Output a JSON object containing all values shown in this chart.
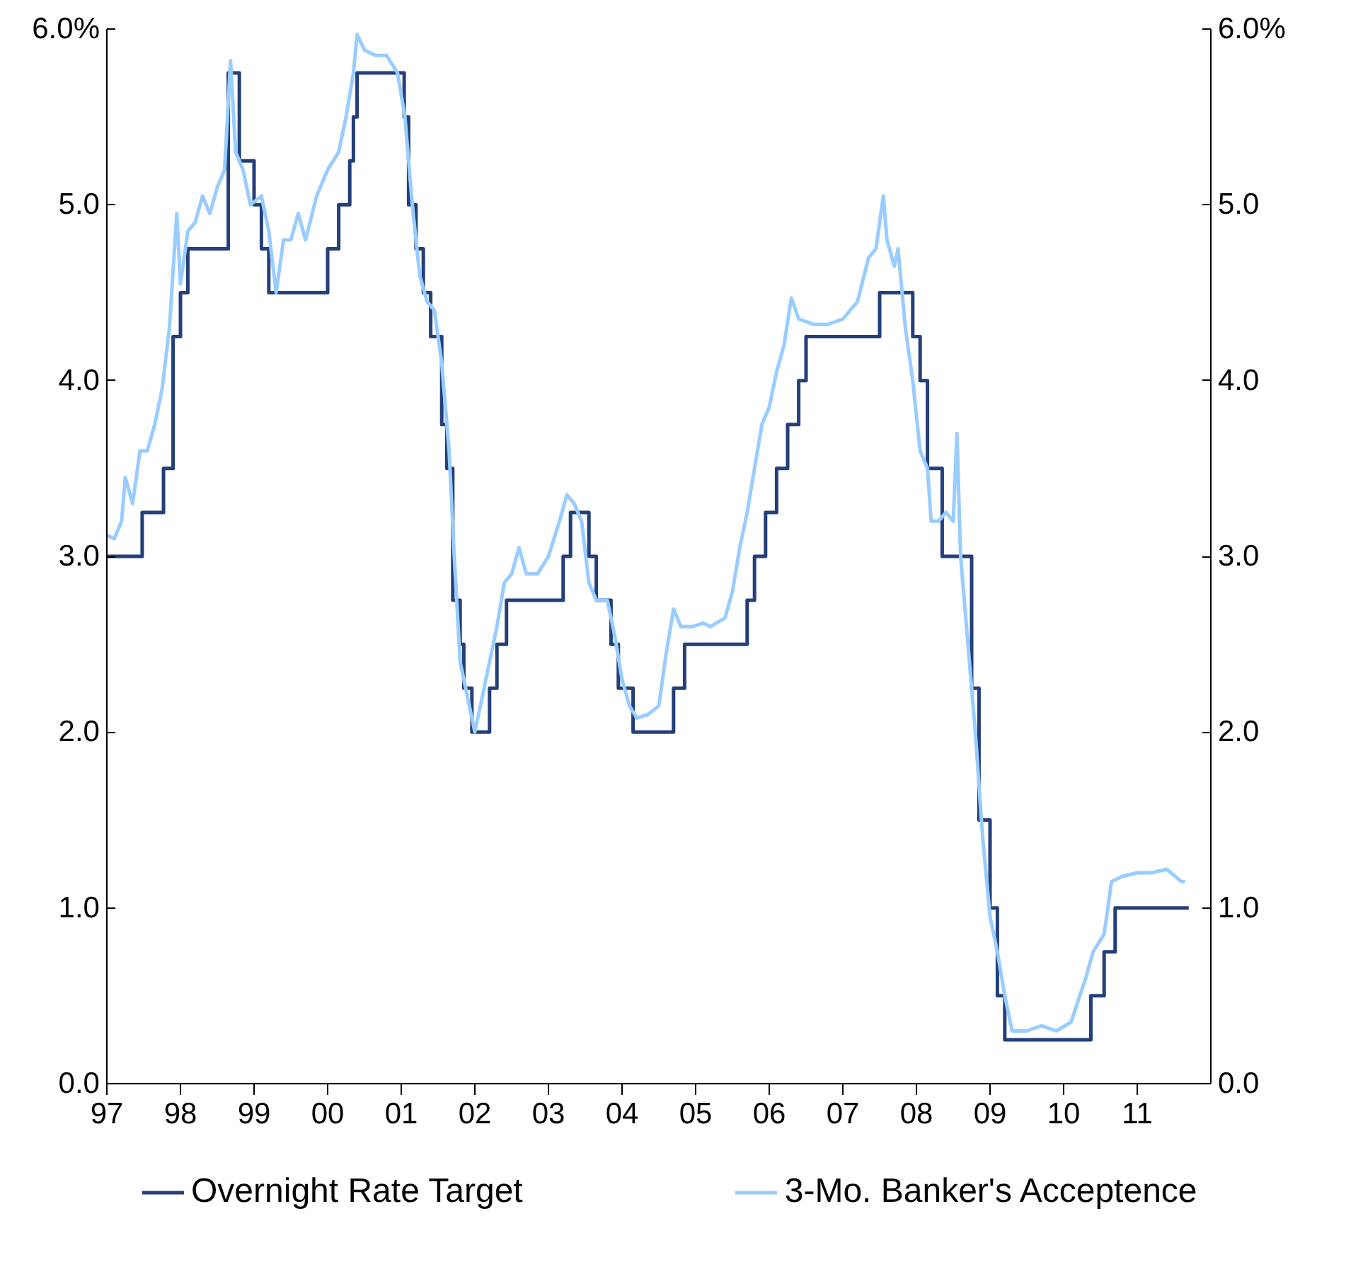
{
  "chart_data": {
    "type": "line",
    "xlim": [
      1997,
      2012
    ],
    "xticks": [
      {
        "value": 1997,
        "label": "97"
      },
      {
        "value": 1998,
        "label": "98"
      },
      {
        "value": 1999,
        "label": "99"
      },
      {
        "value": 2000,
        "label": "00"
      },
      {
        "value": 2001,
        "label": "01"
      },
      {
        "value": 2002,
        "label": "02"
      },
      {
        "value": 2003,
        "label": "03"
      },
      {
        "value": 2004,
        "label": "04"
      },
      {
        "value": 2005,
        "label": "05"
      },
      {
        "value": 2006,
        "label": "06"
      },
      {
        "value": 2007,
        "label": "07"
      },
      {
        "value": 2008,
        "label": "08"
      },
      {
        "value": 2009,
        "label": "09"
      },
      {
        "value": 2010,
        "label": "10"
      },
      {
        "value": 2011,
        "label": "11"
      }
    ],
    "ylim": [
      0,
      6
    ],
    "yticks": [
      {
        "value": 0,
        "label": "0.0"
      },
      {
        "value": 1,
        "label": "1.0"
      },
      {
        "value": 2,
        "label": "2.0"
      },
      {
        "value": 3,
        "label": "3.0"
      },
      {
        "value": 4,
        "label": "4.0"
      },
      {
        "value": 5,
        "label": "5.0"
      },
      {
        "value": 6,
        "label": "6.0%"
      }
    ],
    "y2lim": [
      0,
      6
    ],
    "y2ticks": [
      {
        "value": 0,
        "label": "0.0"
      },
      {
        "value": 1,
        "label": "1.0"
      },
      {
        "value": 2,
        "label": "2.0"
      },
      {
        "value": 3,
        "label": "3.0"
      },
      {
        "value": 4,
        "label": "4.0"
      },
      {
        "value": 5,
        "label": "5.0"
      },
      {
        "value": 6,
        "label": "6.0%"
      }
    ],
    "grid": false,
    "legend": "bottom",
    "series": [
      {
        "name": "Overnight Rate Target",
        "type": "step",
        "color": "#243f7a",
        "x": [
          1997.0,
          1997.48,
          1997.77,
          1997.9,
          1998.0,
          1998.1,
          1998.65,
          1998.8,
          1999.0,
          1999.1,
          1999.2,
          2000.0,
          2000.15,
          2000.3,
          2000.35,
          2000.4,
          2001.04,
          2001.1,
          2001.2,
          2001.3,
          2001.4,
          2001.55,
          2001.62,
          2001.7,
          2001.8,
          2001.85,
          2001.96,
          2002.2,
          2002.3,
          2002.43,
          2002.5,
          2003.2,
          2003.3,
          2003.55,
          2003.65,
          2003.85,
          2003.95,
          2004.15,
          2004.7,
          2004.85,
          2005.7,
          2005.8,
          2005.95,
          2006.1,
          2006.25,
          2006.4,
          2006.5,
          2007.5,
          2007.95,
          2008.05,
          2008.15,
          2008.35,
          2008.75,
          2008.85,
          2009.0,
          2009.1,
          2009.2,
          2009.3,
          2010.37,
          2010.55,
          2010.7,
          2011.7
        ],
        "values": [
          3.0,
          3.25,
          3.5,
          4.25,
          4.5,
          4.75,
          5.75,
          5.25,
          5.0,
          4.75,
          4.5,
          4.75,
          5.0,
          5.25,
          5.5,
          5.75,
          5.5,
          5.0,
          4.75,
          4.5,
          4.25,
          3.75,
          3.5,
          2.75,
          2.5,
          2.25,
          2.0,
          2.25,
          2.5,
          2.75,
          2.75,
          3.0,
          3.25,
          3.0,
          2.75,
          2.5,
          2.25,
          2.0,
          2.25,
          2.5,
          2.75,
          3.0,
          3.25,
          3.5,
          3.75,
          4.0,
          4.25,
          4.5,
          4.25,
          4.0,
          3.5,
          3.0,
          2.25,
          1.5,
          1.0,
          0.5,
          0.25,
          0.25,
          0.5,
          0.75,
          1.0,
          1.0
        ]
      },
      {
        "name": "3-Mo. Banker's Acceptence",
        "color": "#99ccff",
        "x": [
          1997.0,
          1997.1,
          1997.2,
          1997.25,
          1997.35,
          1997.45,
          1997.55,
          1997.65,
          1997.75,
          1997.85,
          1997.95,
          1998.0,
          1998.1,
          1998.2,
          1998.3,
          1998.4,
          1998.5,
          1998.6,
          1998.68,
          1998.75,
          1998.85,
          1998.95,
          1999.1,
          1999.2,
          1999.3,
          1999.4,
          1999.5,
          1999.6,
          1999.7,
          1999.85,
          2000.0,
          2000.15,
          2000.25,
          2000.35,
          2000.4,
          2000.5,
          2000.65,
          2000.8,
          2000.95,
          2001.05,
          2001.15,
          2001.25,
          2001.35,
          2001.45,
          2001.55,
          2001.65,
          2001.72,
          2001.8,
          2001.9,
          2002.0,
          2002.1,
          2002.2,
          2002.3,
          2002.4,
          2002.5,
          2002.6,
          2002.7,
          2002.85,
          2003.0,
          2003.15,
          2003.25,
          2003.35,
          2003.45,
          2003.55,
          2003.65,
          2003.8,
          2003.9,
          2004.0,
          2004.1,
          2004.2,
          2004.35,
          2004.5,
          2004.6,
          2004.7,
          2004.8,
          2004.95,
          2005.1,
          2005.2,
          2005.4,
          2005.5,
          2005.6,
          2005.7,
          2005.8,
          2005.9,
          2006.0,
          2006.1,
          2006.2,
          2006.3,
          2006.4,
          2006.6,
          2006.8,
          2007.0,
          2007.2,
          2007.35,
          2007.45,
          2007.55,
          2007.6,
          2007.7,
          2007.75,
          2007.85,
          2007.95,
          2008.05,
          2008.15,
          2008.2,
          2008.3,
          2008.4,
          2008.5,
          2008.55,
          2008.6,
          2008.7,
          2008.8,
          2008.9,
          2009.0,
          2009.1,
          2009.2,
          2009.3,
          2009.5,
          2009.7,
          2009.9,
          2010.1,
          2010.3,
          2010.4,
          2010.55,
          2010.65,
          2010.8,
          2011.0,
          2011.2,
          2011.4,
          2011.6,
          2011.65
        ],
        "values": [
          3.12,
          3.1,
          3.2,
          3.45,
          3.3,
          3.6,
          3.6,
          3.75,
          3.95,
          4.3,
          4.95,
          4.55,
          4.85,
          4.9,
          5.05,
          4.95,
          5.1,
          5.2,
          5.82,
          5.3,
          5.2,
          5.0,
          5.05,
          4.85,
          4.5,
          4.8,
          4.8,
          4.95,
          4.8,
          5.05,
          5.2,
          5.3,
          5.5,
          5.75,
          5.97,
          5.88,
          5.85,
          5.85,
          5.75,
          5.5,
          5.0,
          4.6,
          4.45,
          4.4,
          4.1,
          3.6,
          3.0,
          2.4,
          2.2,
          2.0,
          2.2,
          2.4,
          2.6,
          2.85,
          2.9,
          3.05,
          2.9,
          2.9,
          3.0,
          3.2,
          3.35,
          3.3,
          3.2,
          2.85,
          2.75,
          2.75,
          2.55,
          2.3,
          2.15,
          2.08,
          2.1,
          2.15,
          2.45,
          2.7,
          2.6,
          2.6,
          2.62,
          2.6,
          2.65,
          2.8,
          3.05,
          3.25,
          3.5,
          3.75,
          3.85,
          4.05,
          4.2,
          4.47,
          4.35,
          4.32,
          4.32,
          4.35,
          4.45,
          4.7,
          4.75,
          5.05,
          4.8,
          4.65,
          4.75,
          4.3,
          4.0,
          3.6,
          3.5,
          3.2,
          3.2,
          3.25,
          3.2,
          3.7,
          3.0,
          2.5,
          2.0,
          1.4,
          0.95,
          0.75,
          0.5,
          0.3,
          0.3,
          0.33,
          0.3,
          0.35,
          0.6,
          0.75,
          0.85,
          1.15,
          1.18,
          1.2,
          1.2,
          1.22,
          1.15,
          1.15
        ]
      }
    ]
  }
}
